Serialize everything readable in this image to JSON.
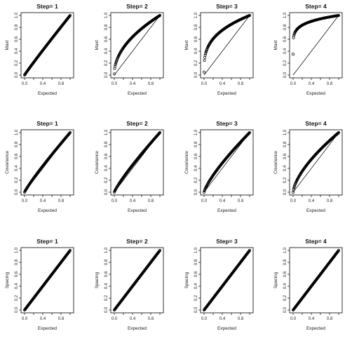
{
  "colors": {
    "background": "#ffffff",
    "ink": "#000000"
  },
  "chart_data": [
    {
      "type": "scatter",
      "row": 0,
      "col": 0,
      "title": "Step= 1",
      "xlabel": "Expected",
      "ylabel": "Maxt",
      "xlim": [
        0,
        1
      ],
      "ylim": [
        0,
        1
      ],
      "xticks": [
        "0.0",
        "0.4",
        "0.8"
      ],
      "yticks": [
        "0.0",
        "0.2",
        "0.4",
        "0.6",
        "0.8",
        "1.0"
      ],
      "reference_line": "y = x",
      "series": [
        {
          "curve_power": 0.96,
          "y_start": 0.0,
          "y_end": 1.0,
          "n_points": 120
        }
      ]
    },
    {
      "type": "scatter",
      "row": 0,
      "col": 1,
      "title": "Step= 2",
      "xlabel": "Expected",
      "ylabel": "Maxt",
      "xlim": [
        0,
        1
      ],
      "ylim": [
        0,
        1
      ],
      "xticks": [
        "0.0",
        "0.4",
        "0.8"
      ],
      "yticks": [
        "0.0",
        "0.2",
        "0.4",
        "0.6",
        "0.8",
        "1.0"
      ],
      "reference_line": "y = x",
      "series": [
        {
          "curve_power": 0.5,
          "y_start": 0.02,
          "y_end": 1.0,
          "n_points": 120
        }
      ]
    },
    {
      "type": "scatter",
      "row": 0,
      "col": 2,
      "title": "Step= 3",
      "xlabel": "Expected",
      "ylabel": "Maxt",
      "xlim": [
        0,
        1
      ],
      "ylim": [
        0,
        1
      ],
      "xticks": [
        "0.0",
        "0.4",
        "0.8"
      ],
      "yticks": [
        "0.0",
        "0.2",
        "0.4",
        "0.6",
        "0.8",
        "1.0"
      ],
      "reference_line": "y = x",
      "series": [
        {
          "curve_power": 0.33,
          "y_start": 0.05,
          "y_end": 1.0,
          "n_points": 120
        }
      ]
    },
    {
      "type": "scatter",
      "row": 0,
      "col": 3,
      "title": "Step= 4",
      "xlabel": "Expected",
      "ylabel": "Maxt",
      "xlim": [
        0,
        1
      ],
      "ylim": [
        0,
        1
      ],
      "xticks": [
        "0.0",
        "0.4",
        "0.8"
      ],
      "yticks": [
        "0.0",
        "0.2",
        "0.4",
        "0.6",
        "0.8",
        "1.0"
      ],
      "reference_line": "y = x",
      "series": [
        {
          "curve_power": 0.18,
          "y_start": 0.35,
          "y_end": 1.0,
          "n_points": 120
        }
      ]
    },
    {
      "type": "scatter",
      "row": 1,
      "col": 0,
      "title": "Step= 1",
      "xlabel": "Expected",
      "ylabel": "Covariance",
      "xlim": [
        0,
        1
      ],
      "ylim": [
        0,
        1
      ],
      "xticks": [
        "0.0",
        "0.4",
        "0.8"
      ],
      "yticks": [
        "0.0",
        "0.2",
        "0.4",
        "0.6",
        "0.8",
        "1.0"
      ],
      "reference_line": "y = x",
      "series": [
        {
          "curve_power": 0.9,
          "y_start": 0.0,
          "y_end": 1.0,
          "n_points": 120
        }
      ]
    },
    {
      "type": "scatter",
      "row": 1,
      "col": 1,
      "title": "Step= 2",
      "xlabel": "Expected",
      "ylabel": "Covariance",
      "xlim": [
        0,
        1
      ],
      "ylim": [
        0,
        1
      ],
      "xticks": [
        "0.0",
        "0.4",
        "0.8"
      ],
      "yticks": [
        "0.0",
        "0.2",
        "0.4",
        "0.6",
        "0.8",
        "1.0"
      ],
      "reference_line": "y = x",
      "series": [
        {
          "curve_power": 0.86,
          "y_start": 0.0,
          "y_end": 1.0,
          "n_points": 120
        }
      ]
    },
    {
      "type": "scatter",
      "row": 1,
      "col": 2,
      "title": "Step= 3",
      "xlabel": "Expected",
      "ylabel": "Covariance",
      "xlim": [
        0,
        1
      ],
      "ylim": [
        0,
        1
      ],
      "xticks": [
        "0.0",
        "0.4",
        "0.8"
      ],
      "yticks": [
        "0.0",
        "0.2",
        "0.4",
        "0.6",
        "0.8",
        "1.0"
      ],
      "reference_line": "y = x",
      "series": [
        {
          "curve_power": 0.78,
          "y_start": 0.0,
          "y_end": 1.0,
          "n_points": 120
        }
      ]
    },
    {
      "type": "scatter",
      "row": 1,
      "col": 3,
      "title": "Step= 4",
      "xlabel": "Expected",
      "ylabel": "Covariance",
      "xlim": [
        0,
        1
      ],
      "ylim": [
        0,
        1
      ],
      "xticks": [
        "0.0",
        "0.4",
        "0.8"
      ],
      "yticks": [
        "0.0",
        "0.2",
        "0.4",
        "0.6",
        "0.8",
        "1.0"
      ],
      "reference_line": "y = x",
      "series": [
        {
          "curve_power": 0.65,
          "y_start": 0.0,
          "y_end": 1.0,
          "n_points": 120
        }
      ]
    },
    {
      "type": "scatter",
      "row": 2,
      "col": 0,
      "title": "Step= 1",
      "xlabel": "Expected",
      "ylabel": "Spacing",
      "xlim": [
        0,
        1
      ],
      "ylim": [
        0,
        1
      ],
      "xticks": [
        "0.0",
        "0.4",
        "0.8"
      ],
      "yticks": [
        "0.0",
        "0.2",
        "0.4",
        "0.6",
        "0.8",
        "1.0"
      ],
      "reference_line": "none",
      "series": [
        {
          "curve_power": 1.0,
          "y_start": 0.0,
          "y_end": 1.0,
          "n_points": 120
        }
      ]
    },
    {
      "type": "scatter",
      "row": 2,
      "col": 1,
      "title": "Step= 2",
      "xlabel": "Expected",
      "ylabel": "Spacing",
      "xlim": [
        0,
        1
      ],
      "ylim": [
        0,
        1
      ],
      "xticks": [
        "0.0",
        "0.4",
        "0.8"
      ],
      "yticks": [
        "0.0",
        "0.2",
        "0.4",
        "0.6",
        "0.8",
        "1.0"
      ],
      "reference_line": "none",
      "series": [
        {
          "curve_power": 1.0,
          "y_start": 0.0,
          "y_end": 1.0,
          "n_points": 120
        }
      ]
    },
    {
      "type": "scatter",
      "row": 2,
      "col": 2,
      "title": "Step= 3",
      "xlabel": "Expected",
      "ylabel": "Spacing",
      "xlim": [
        0,
        1
      ],
      "ylim": [
        0,
        1
      ],
      "xticks": [
        "0.0",
        "0.4",
        "0.8"
      ],
      "yticks": [
        "0.0",
        "0.2",
        "0.4",
        "0.6",
        "0.8",
        "1.0"
      ],
      "reference_line": "none",
      "series": [
        {
          "curve_power": 1.0,
          "y_start": 0.0,
          "y_end": 1.0,
          "n_points": 120
        }
      ]
    },
    {
      "type": "scatter",
      "row": 2,
      "col": 3,
      "title": "Step= 4",
      "xlabel": "Expected",
      "ylabel": "Spacing",
      "xlim": [
        0,
        1
      ],
      "ylim": [
        0,
        1
      ],
      "xticks": [
        "0.0",
        "0.4",
        "0.8"
      ],
      "yticks": [
        "0.0",
        "0.2",
        "0.4",
        "0.6",
        "0.8",
        "1.0"
      ],
      "reference_line": "none",
      "series": [
        {
          "curve_power": 1.0,
          "y_start": 0.0,
          "y_end": 1.0,
          "n_points": 120
        }
      ]
    }
  ]
}
